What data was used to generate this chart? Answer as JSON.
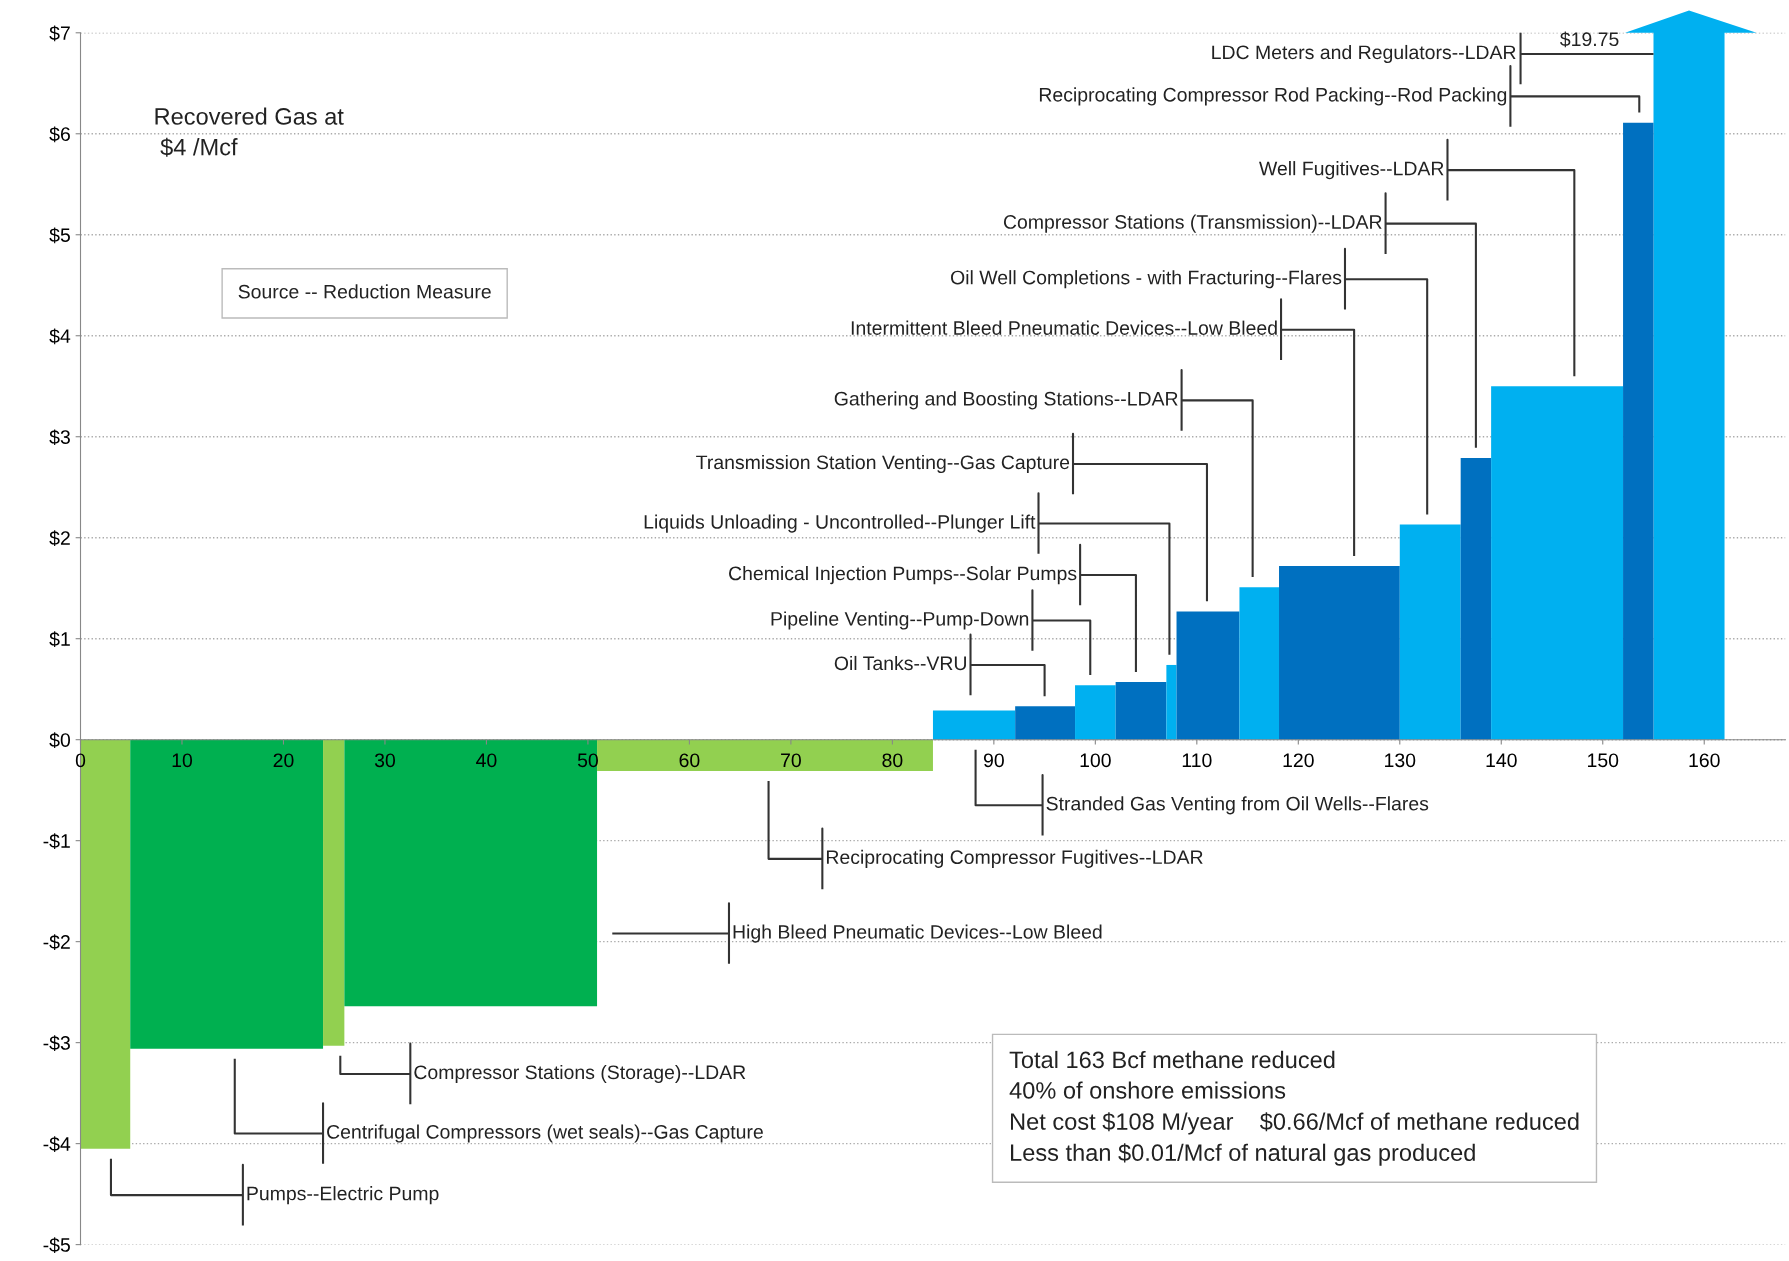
{
  "chart_data": {
    "type": "area",
    "xlim": [
      0,
      168
    ],
    "ylim": [
      -5,
      7
    ],
    "xticks": [
      0,
      10,
      20,
      30,
      40,
      50,
      60,
      70,
      80,
      90,
      100,
      110,
      120,
      130,
      140,
      150,
      160
    ],
    "yticks": [
      {
        "value": -5,
        "label": "-$5"
      },
      {
        "value": -4,
        "label": "-$4"
      },
      {
        "value": -3,
        "label": "-$3"
      },
      {
        "value": -2,
        "label": "-$2"
      },
      {
        "value": -1,
        "label": "-$1"
      },
      {
        "value": 0,
        "label": "$0"
      },
      {
        "value": 1,
        "label": "$1"
      },
      {
        "value": 2,
        "label": "$2"
      },
      {
        "value": 3,
        "label": "$3"
      },
      {
        "value": 4,
        "label": "$4"
      },
      {
        "value": 5,
        "label": "$5"
      },
      {
        "value": 6,
        "label": "$6"
      },
      {
        "value": 7,
        "label": "$7"
      }
    ],
    "grid": "y",
    "series": [
      {
        "color": "#92d050",
        "x": [
          0,
          4.9
        ],
        "values": [
          -4.05,
          -4.05
        ]
      },
      {
        "color": "#00b050",
        "x": [
          4.9,
          23.9
        ],
        "values": [
          -3.06,
          -3.06
        ]
      },
      {
        "color": "#92d050",
        "x": [
          23.9,
          26
        ],
        "values": [
          -3.03,
          -3.03
        ]
      },
      {
        "color": "#00b050",
        "x": [
          26,
          50.9
        ],
        "values": [
          -2.64,
          -2.64
        ]
      },
      {
        "color": "#92d050",
        "x": [
          50.9,
          84
        ],
        "values": [
          -0.31,
          -0.31
        ]
      },
      {
        "color": "#00b0f0",
        "x": [
          84,
          92.1
        ],
        "values": [
          0.29,
          0.29
        ]
      },
      {
        "color": "#0070c0",
        "x": [
          92.1,
          98
        ],
        "values": [
          0.33,
          0.33
        ]
      },
      {
        "color": "#00b0f0",
        "x": [
          98,
          102
        ],
        "values": [
          0.54,
          0.54
        ]
      },
      {
        "color": "#0070c0",
        "x": [
          102,
          107
        ],
        "values": [
          0.57,
          0.57
        ]
      },
      {
        "color": "#00b0f0",
        "x": [
          107,
          108
        ],
        "values": [
          0.74,
          0.74
        ]
      },
      {
        "color": "#0070c0",
        "x": [
          108,
          114.2
        ],
        "values": [
          1.27,
          1.27
        ]
      },
      {
        "color": "#00b0f0",
        "x": [
          114.2,
          118.1
        ],
        "values": [
          1.51,
          1.51
        ]
      },
      {
        "color": "#0070c0",
        "x": [
          118.1,
          130
        ],
        "values": [
          1.72,
          1.72
        ]
      },
      {
        "color": "#00b0f0",
        "x": [
          130,
          136
        ],
        "values": [
          2.13,
          2.13
        ]
      },
      {
        "color": "#0070c0",
        "x": [
          136,
          139
        ],
        "values": [
          2.79,
          2.79
        ]
      },
      {
        "color": "#00b0f0",
        "x": [
          139,
          152
        ],
        "values": [
          3.5,
          3.5
        ]
      },
      {
        "color": "#0070c0",
        "x": [
          152,
          155
        ],
        "values": [
          6.11,
          6.11
        ]
      }
    ],
    "annotations": [
      "Recovered Gas at\n $4 /Mcf",
      "Source -- Reduction Measure",
      "Total 163 Bcf methane reduced\n40% of onshore emissions\nNet cost $108 M/year    $0.66/Mcf of methane reduced\nLess than $0.01/Mcf of natural gas produced",
      "LDC Meters and Regulators--LDAR",
      "$19.75",
      "Pumps--Electric Pump",
      "Centrifugal Compressors (wet seals)--Gas Capture",
      "Compressor Stations (Storage)--LDAR",
      "High Bleed Pneumatic Devices--Low Bleed",
      "Reciprocating Compressor Fugitives--LDAR",
      "Stranded Gas Venting from Oil Wells--Flares",
      "Oil Tanks--VRU",
      "Pipeline Venting--Pump-Down",
      "Chemical Injection Pumps--Solar Pumps",
      "Liquids Unloading - Uncontrolled--Plunger Lift",
      "Transmission Station Venting--Gas Capture",
      "Gathering and Boosting Stations--LDAR",
      "Intermittent Bleed Pneumatic Devices--Low Bleed",
      "Oil Well Completions - with Fracturing--Flares",
      "Compressor Stations (Transmission)--LDAR",
      "Well Fugitives--LDAR",
      "Reciprocating Compressor Rod Packing--Rod Packing"
    ]
  }
}
